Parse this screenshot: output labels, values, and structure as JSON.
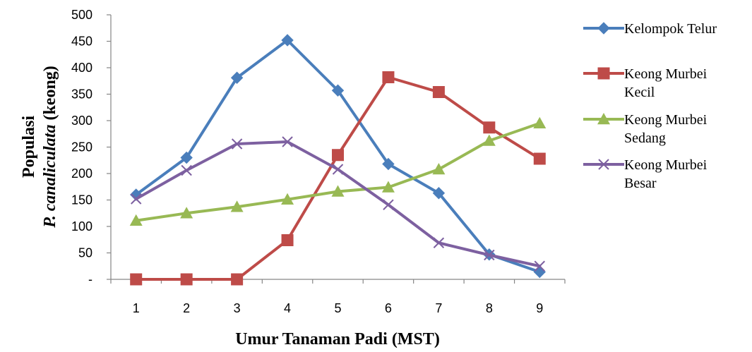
{
  "chart_data": {
    "type": "line",
    "xlabel": "Umur Tanaman Padi (MST)",
    "ylabel_line1": "Populasi",
    "ylabel_line2_italic": "P. canaliculata",
    "ylabel_line2_rest": " (keong)",
    "categories": [
      "1",
      "2",
      "3",
      "4",
      "5",
      "6",
      "7",
      "8",
      "9"
    ],
    "ylim": [
      0,
      500
    ],
    "yticks": [
      0,
      50,
      100,
      150,
      200,
      250,
      300,
      350,
      400,
      450,
      500
    ],
    "ytick_labels": [
      "-",
      "50",
      "100",
      "150",
      "200",
      "250",
      "300",
      "350",
      "400",
      "450",
      "500"
    ],
    "grid": false,
    "legend_position": "right",
    "series": [
      {
        "name": "Kelompok Telur",
        "legend_lines": [
          "Kelompok Telur"
        ],
        "color": "#4a7ebb",
        "marker": "diamond",
        "values": [
          160,
          230,
          381,
          452,
          357,
          218,
          163,
          47,
          14
        ]
      },
      {
        "name": "Keong Murbei Kecil",
        "legend_lines": [
          "Keong Murbei",
          "Kecil"
        ],
        "color": "#be4b48",
        "marker": "square",
        "values": [
          0,
          0,
          0,
          74,
          235,
          382,
          354,
          287,
          228
        ]
      },
      {
        "name": "Keong Murbei Sedang",
        "legend_lines": [
          "Keong Murbei",
          "Sedang"
        ],
        "color": "#98b954",
        "marker": "triangle",
        "values": [
          111,
          125,
          137,
          151,
          166,
          174,
          208,
          262,
          295
        ]
      },
      {
        "name": "Keong Murbei Besar",
        "legend_lines": [
          "Keong Murbei",
          "Besar"
        ],
        "color": "#7d60a0",
        "marker": "x",
        "values": [
          152,
          206,
          256,
          260,
          208,
          141,
          69,
          46,
          25
        ]
      }
    ]
  }
}
